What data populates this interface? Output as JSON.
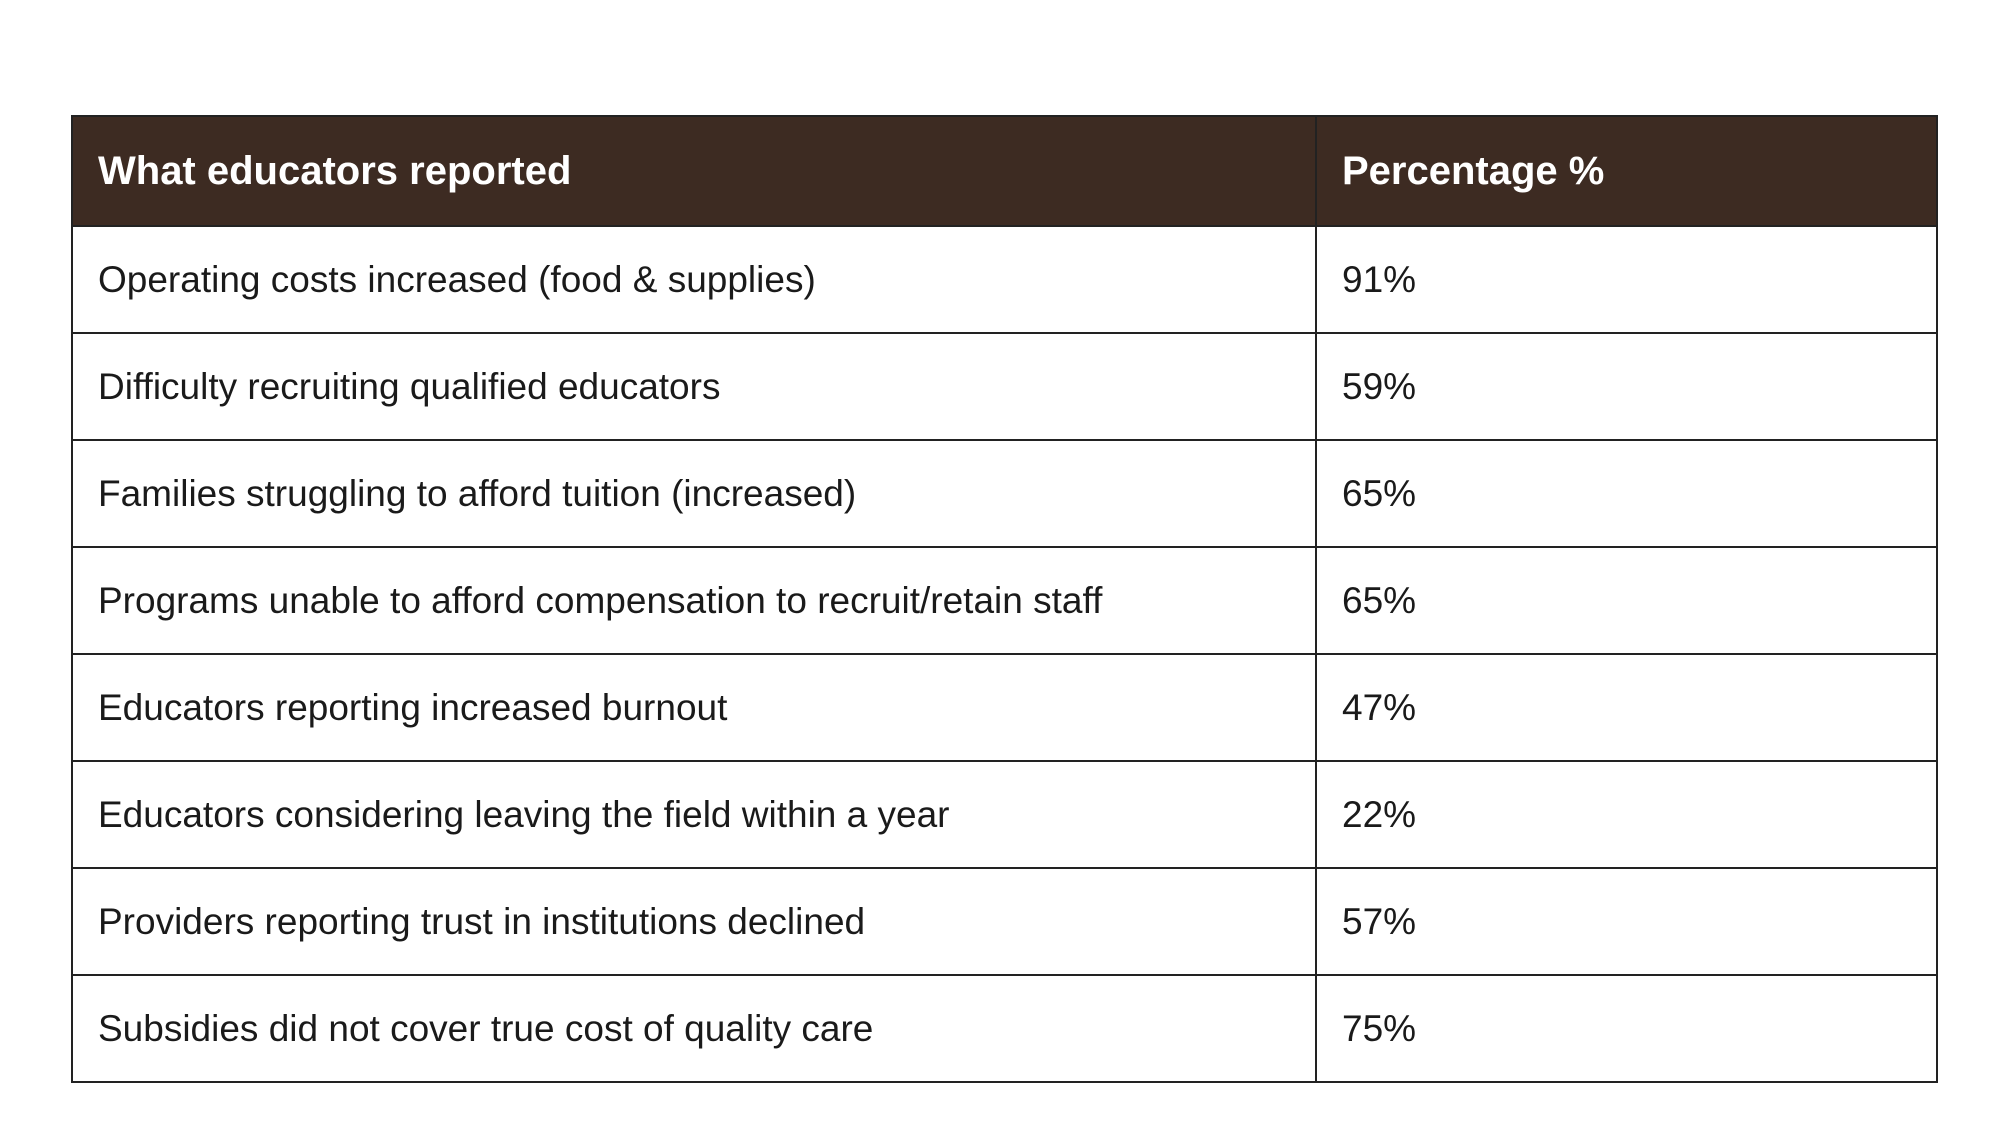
{
  "colors": {
    "header_background": "#3d2b22",
    "header_text": "#ffffff",
    "border": "#222222",
    "cell_text": "#1a1a1a",
    "page_background": "#ffffff"
  },
  "chart_data": {
    "type": "table",
    "columns": [
      "What educators reported",
      "Percentage %"
    ],
    "rows": [
      {
        "label": "Operating costs increased (food & supplies)",
        "value_text": "91%",
        "value": 91
      },
      {
        "label": "Difficulty recruiting qualified educators",
        "value_text": "59%",
        "value": 59
      },
      {
        "label": "Families struggling to afford tuition (increased)",
        "value_text": "65%",
        "value": 65
      },
      {
        "label": "Programs unable to afford compensation to recruit/retain staff",
        "value_text": "65%",
        "value": 65
      },
      {
        "label": "Educators reporting increased burnout",
        "value_text": "47%",
        "value": 47
      },
      {
        "label": "Educators considering leaving the field within a year",
        "value_text": "22%",
        "value": 22
      },
      {
        "label": "Providers reporting trust in institutions declined",
        "value_text": "57%",
        "value": 57
      },
      {
        "label": "Subsidies did not cover true cost of quality care",
        "value_text": "75%",
        "value": 75
      }
    ]
  }
}
